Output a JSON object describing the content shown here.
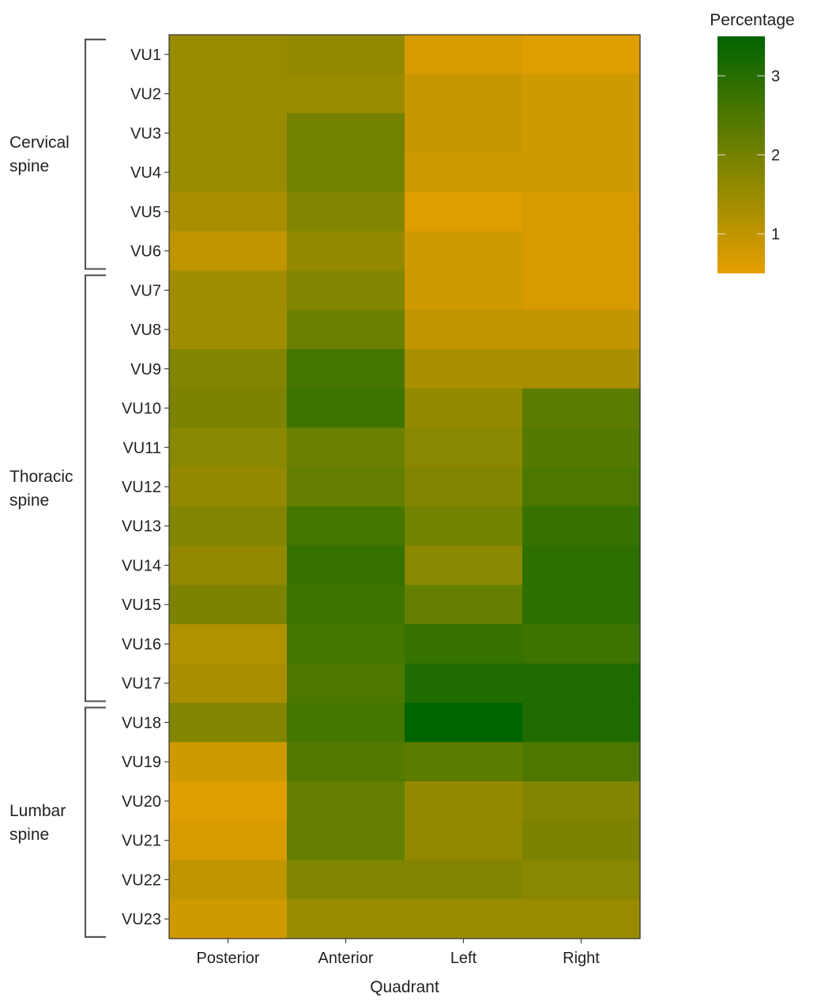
{
  "chart_data": {
    "type": "heatmap",
    "xlabel": "Quadrant",
    "ylabel": "",
    "x_categories": [
      "Posterior",
      "Anterior",
      "Left",
      "Right"
    ],
    "y_categories": [
      "VU1",
      "VU2",
      "VU3",
      "VU4",
      "VU5",
      "VU6",
      "VU7",
      "VU8",
      "VU9",
      "VU10",
      "VU11",
      "VU12",
      "VU13",
      "VU14",
      "VU15",
      "VU16",
      "VU17",
      "VU18",
      "VU19",
      "VU20",
      "VU21",
      "VU22",
      "VU23"
    ],
    "values": [
      [
        1.5,
        1.6,
        0.7,
        0.6
      ],
      [
        1.5,
        1.5,
        0.9,
        0.8
      ],
      [
        1.5,
        2.0,
        0.9,
        0.8
      ],
      [
        1.5,
        2.0,
        0.8,
        0.8
      ],
      [
        1.3,
        1.8,
        0.6,
        0.7
      ],
      [
        1.0,
        1.6,
        0.8,
        0.7
      ],
      [
        1.4,
        1.8,
        0.8,
        0.7
      ],
      [
        1.4,
        2.1,
        1.0,
        1.0
      ],
      [
        1.8,
        2.6,
        1.3,
        1.3
      ],
      [
        1.9,
        2.7,
        1.6,
        2.3
      ],
      [
        1.7,
        2.1,
        1.7,
        2.4
      ],
      [
        1.6,
        2.2,
        1.8,
        2.5
      ],
      [
        1.8,
        2.6,
        2.0,
        2.8
      ],
      [
        1.6,
        2.8,
        1.7,
        2.9
      ],
      [
        1.9,
        2.7,
        2.2,
        2.9
      ],
      [
        1.2,
        2.6,
        2.8,
        2.7
      ],
      [
        1.3,
        2.5,
        3.1,
        3.1
      ],
      [
        1.8,
        2.6,
        3.5,
        3.1
      ],
      [
        0.8,
        2.4,
        2.3,
        2.5
      ],
      [
        0.6,
        2.2,
        1.6,
        1.8
      ],
      [
        0.7,
        2.2,
        1.6,
        1.9
      ],
      [
        1.0,
        1.8,
        1.8,
        1.7
      ],
      [
        0.8,
        1.5,
        1.5,
        1.5
      ]
    ],
    "groups": [
      {
        "label_lines": [
          "Cervical",
          "spine"
        ],
        "start": "VU1",
        "end": "VU6"
      },
      {
        "label_lines": [
          "Thoracic",
          "spine"
        ],
        "start": "VU7",
        "end": "VU17"
      },
      {
        "label_lines": [
          "Lumbar",
          "spine"
        ],
        "start": "VU18",
        "end": "VU23"
      }
    ],
    "legend": {
      "title": "Percentage",
      "position": "top-right",
      "min": 0.5,
      "max": 3.5,
      "ticks": [
        1,
        2,
        3
      ],
      "color_low": "#E69F00",
      "color_high": "#006400"
    },
    "grid": false
  }
}
